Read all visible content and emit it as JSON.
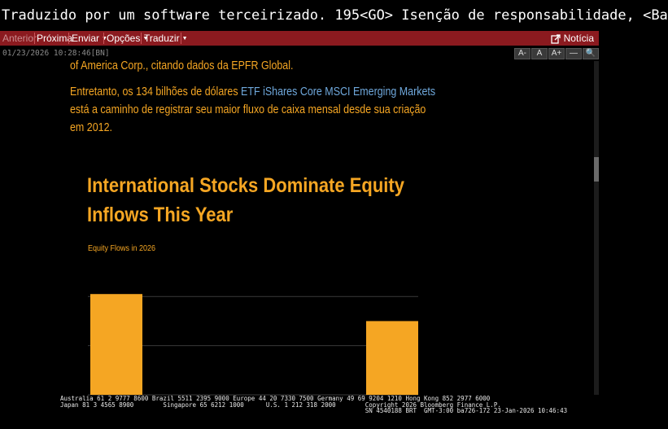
{
  "top_bar": {
    "text": "Traduzido por um software terceirizado. 195<GO> Isenção de responsabilidade, <Ba"
  },
  "menu": {
    "items": [
      {
        "label": "Anterior",
        "disabled": true
      },
      {
        "label": "Próxima"
      },
      {
        "label": "Enviar",
        "dropdown": true
      },
      {
        "label": "Opções",
        "dropdown": true
      },
      {
        "label": "Traduzir",
        "dropdown": true
      }
    ],
    "news_label": "Notícia"
  },
  "meta": {
    "timestamp": "01/23/2026 10:28:46",
    "source": "[BN]"
  },
  "zoom_controls": [
    "A-",
    "A",
    "A+",
    "🔍"
  ],
  "article": {
    "line1": "of America Corp., citando dados da EPFR Global.",
    "para2_prefix": "Entretanto, os 134 bilhões de dólares ",
    "para2_link": "ETF iShares Core MSCI Emerging Markets",
    "para2_line2": "está a caminho de registrar seu maior fluxo de caixa mensal desde sua criação",
    "para2_line3": "em 2012."
  },
  "chart_data": {
    "type": "bar",
    "title_line1": "International Stocks Dominate Equity",
    "title_line2": "Inflows This Year",
    "subtitle": "Equity Flows in 2026",
    "ylim": [
      0,
      52
    ],
    "gridlines": [
      0,
      20,
      40
    ],
    "values": [
      41,
      30
    ],
    "bar_color": "#f5a623"
  },
  "footer": {
    "line1": "Australia 61 2 9777 8600 Brazil 5511 2395 9000 Europe 44 20 7330 7500 Germany 49 69 9204 1210 Hong Kong 852 2977 6000",
    "line2": "Japan 81 3 4565 8900        Singapore 65 6212 1000      U.S. 1 212 318 2000        Copyright 2026 Bloomberg Finance L.P.",
    "line3": "                                                                                   SN 4540188 BRT  GMT-3:00 ba726-172 23-Jan-2026 10:46:43"
  }
}
